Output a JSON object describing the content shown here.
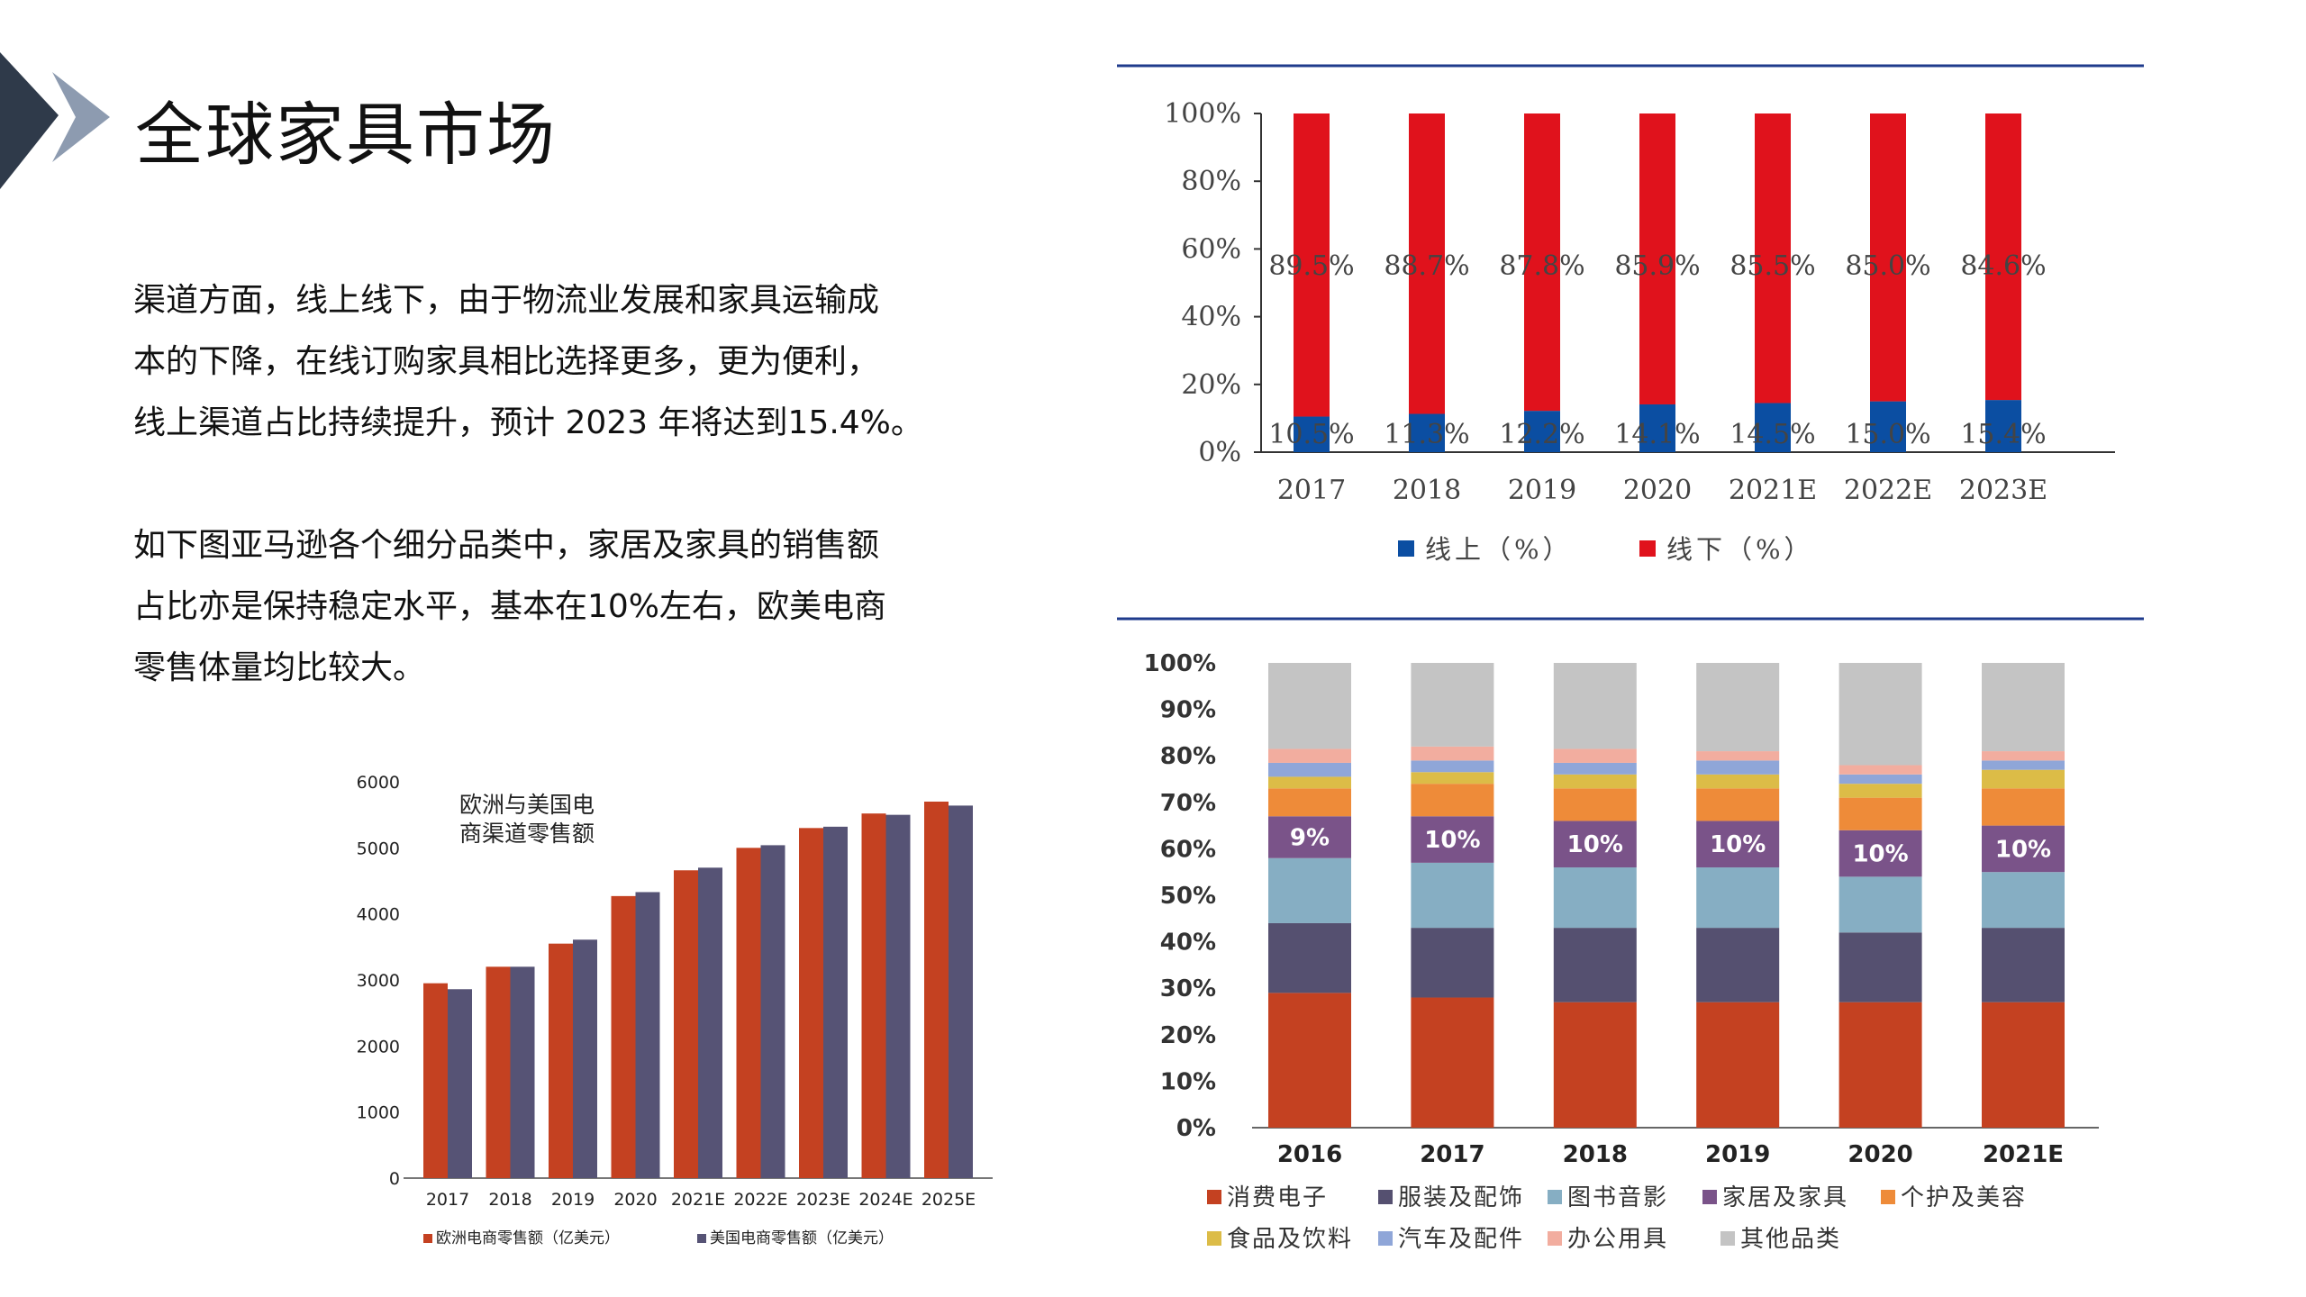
{
  "page": {
    "title": "全球家具市场",
    "paragraph1": [
      "渠道方面，线上线下，由于物流业发展和家具运输成",
      "本的下降，在线订购家具相比选择更多，更为便利，",
      "线上渠道占比持续提升，预计 2023 年将达到15.4%。"
    ],
    "paragraph2": [
      "如下图亚马逊各个细分品类中，家居及家具的销售额",
      "占比亦是保持稳定水平，基本在10%左右，欧美电商",
      "零售体量均比较大。"
    ]
  },
  "colors": {
    "accent_dark": "#2f3a4a",
    "accent_light": "#8d9bb0",
    "divider": "#1f3b8c"
  },
  "chart_data": [
    {
      "id": "online-offline",
      "type": "bar",
      "stacked": true,
      "categories": [
        "2017",
        "2018",
        "2019",
        "2020",
        "2021E",
        "2022E",
        "2023E"
      ],
      "ylim": [
        0,
        100
      ],
      "yticks": [
        "0%",
        "20%",
        "40%",
        "60%",
        "80%",
        "100%"
      ],
      "series": [
        {
          "name": "线上（%）",
          "color": "#0b4ea2",
          "values": [
            10.5,
            11.3,
            12.2,
            14.1,
            14.5,
            15.0,
            15.4
          ],
          "labels": [
            "10.5%",
            "11.3%",
            "12.2%",
            "14.1%",
            "14.5%",
            "15.0%",
            "15.4%"
          ]
        },
        {
          "name": "线下（%）",
          "color": "#e0121c",
          "values": [
            89.5,
            88.7,
            87.8,
            85.9,
            85.5,
            85.0,
            84.6
          ],
          "labels": [
            "89.5%",
            "88.7%",
            "87.8%",
            "85.9%",
            "85.5%",
            "85.0%",
            "84.6%"
          ]
        }
      ]
    },
    {
      "id": "amazon-categories",
      "type": "bar",
      "stacked": true,
      "categories": [
        "2016",
        "2017",
        "2018",
        "2019",
        "2020",
        "2021E"
      ],
      "ylim": [
        0,
        100
      ],
      "yticks": [
        "0%",
        "10%",
        "20%",
        "30%",
        "40%",
        "50%",
        "60%",
        "70%",
        "80%",
        "90%",
        "100%"
      ],
      "series": [
        {
          "name": "消费电子",
          "color": "#c44121",
          "values": [
            29,
            28,
            27,
            27,
            27,
            27
          ]
        },
        {
          "name": "服装及配饰",
          "color": "#555070",
          "values": [
            15,
            15,
            16,
            16,
            15,
            16
          ]
        },
        {
          "name": "图书音影",
          "color": "#86aec3",
          "values": [
            14,
            14,
            13,
            13,
            12,
            12
          ]
        },
        {
          "name": "家居及家具",
          "color": "#7a5389",
          "values": [
            9,
            10,
            10,
            10,
            10,
            10
          ],
          "labels": [
            "9%",
            "10%",
            "10%",
            "10%",
            "10%",
            "10%"
          ]
        },
        {
          "name": "个护及美容",
          "color": "#ee8b39",
          "values": [
            6,
            7,
            7,
            7,
            7,
            8
          ]
        },
        {
          "name": "食品及饮料",
          "color": "#dcbc47",
          "values": [
            2.5,
            2.5,
            3,
            3,
            3,
            4
          ]
        },
        {
          "name": "汽车及配件",
          "color": "#8fa6d8",
          "values": [
            3,
            2.5,
            2.5,
            3,
            2,
            2
          ]
        },
        {
          "name": "办公用具",
          "color": "#f2ad9f",
          "values": [
            3,
            3,
            3,
            2,
            2,
            2
          ]
        },
        {
          "name": "其他品类",
          "color": "#c4c4c4",
          "values": [
            18.5,
            18,
            18.5,
            19,
            22,
            19
          ]
        }
      ]
    },
    {
      "id": "ecommerce-retail",
      "type": "bar",
      "title": "欧洲与美国电商渠道零售额",
      "title_lines": [
        "欧洲与美国电",
        "商渠道零售额"
      ],
      "categories": [
        "2017",
        "2018",
        "2019",
        "2020",
        "2021E",
        "2022E",
        "2023E",
        "2024E",
        "2025E"
      ],
      "ylim": [
        0,
        6000
      ],
      "yticks": [
        "0",
        "1000",
        "2000",
        "3000",
        "4000",
        "5000",
        "6000"
      ],
      "series": [
        {
          "name": "欧洲电商零售额（亿美元）",
          "color": "#c44121",
          "values": [
            2950,
            3200,
            3550,
            4270,
            4660,
            5000,
            5300,
            5520,
            5700
          ]
        },
        {
          "name": "美国电商零售额（亿美元）",
          "color": "#565375",
          "values": [
            2860,
            3200,
            3610,
            4330,
            4700,
            5040,
            5320,
            5500,
            5640
          ]
        }
      ]
    }
  ]
}
